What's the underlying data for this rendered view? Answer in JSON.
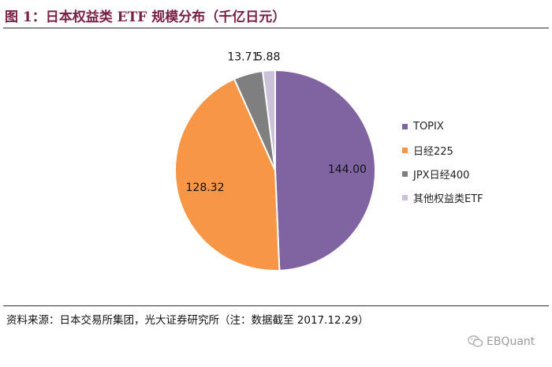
{
  "figure": {
    "title": "图 1：日本权益类 ETF 规模分布（千亿日元）"
  },
  "chart_data": {
    "type": "pie",
    "title": "日本权益类 ETF 规模分布（千亿日元）",
    "categories": [
      "TOPIX",
      "日经225",
      "JPX日经400",
      "其他权益类ETF"
    ],
    "values": [
      144.0,
      128.32,
      13.71,
      5.88
    ],
    "value_labels": [
      "144.00",
      "128.32",
      "13.71",
      "5.88"
    ],
    "colors": [
      "#8064a2",
      "#f79646",
      "#7f7f7f",
      "#ccc1da"
    ],
    "legend_position": "right"
  },
  "source_note": "资料来源：日本交易所集团，光大证券研究所（注：数据截至 2017.12.29）",
  "watermark": {
    "text": "EBQuant",
    "icon": "wechat-icon"
  }
}
